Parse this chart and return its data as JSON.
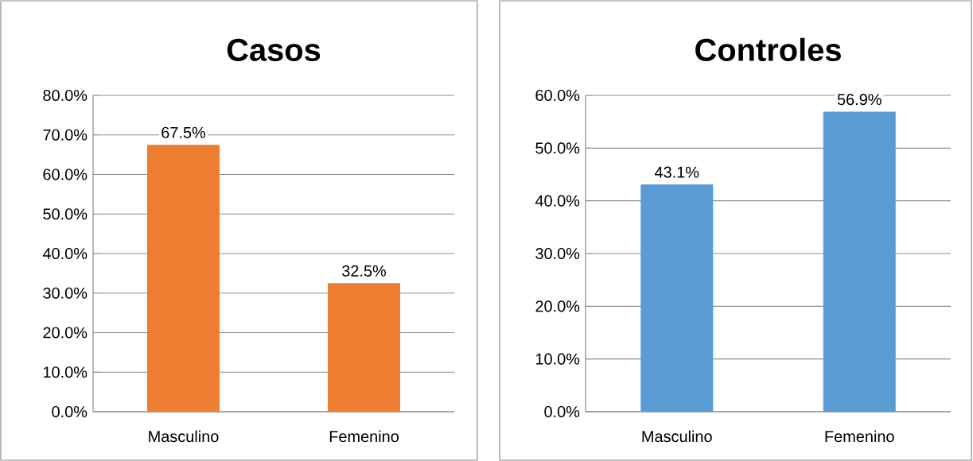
{
  "chart_data": [
    {
      "type": "bar",
      "title": "Casos",
      "categories": [
        "Masculino",
        "Femenino"
      ],
      "values": [
        67.5,
        32.5
      ],
      "color": "#ed7d31",
      "ylim": [
        0,
        80
      ],
      "yticks": [
        {
          "value": 0,
          "label": "0.0%"
        },
        {
          "value": 10,
          "label": "10.0%"
        },
        {
          "value": 20,
          "label": "20.0%"
        },
        {
          "value": 30,
          "label": "30.0%"
        },
        {
          "value": 40,
          "label": "40.0%"
        },
        {
          "value": 50,
          "label": "50.0%"
        },
        {
          "value": 60,
          "label": "60.0%"
        },
        {
          "value": 70,
          "label": "70.0%"
        },
        {
          "value": 80,
          "label": "80.0%"
        }
      ],
      "grid": "y",
      "value_labels": [
        "67.5%",
        "32.5%"
      ]
    },
    {
      "type": "bar",
      "title": "Controles",
      "categories": [
        "Masculino",
        "Femenino"
      ],
      "values": [
        43.1,
        56.9
      ],
      "color": "#5b9bd5",
      "ylim": [
        0,
        60
      ],
      "yticks": [
        {
          "value": 0,
          "label": "0.0%"
        },
        {
          "value": 10,
          "label": "10.0%"
        },
        {
          "value": 20,
          "label": "20.0%"
        },
        {
          "value": 30,
          "label": "30.0%"
        },
        {
          "value": 40,
          "label": "40.0%"
        },
        {
          "value": 50,
          "label": "50.0%"
        },
        {
          "value": 60,
          "label": "60.0%"
        }
      ],
      "grid": "y",
      "value_labels": [
        "43.1%",
        "56.9%"
      ]
    }
  ]
}
